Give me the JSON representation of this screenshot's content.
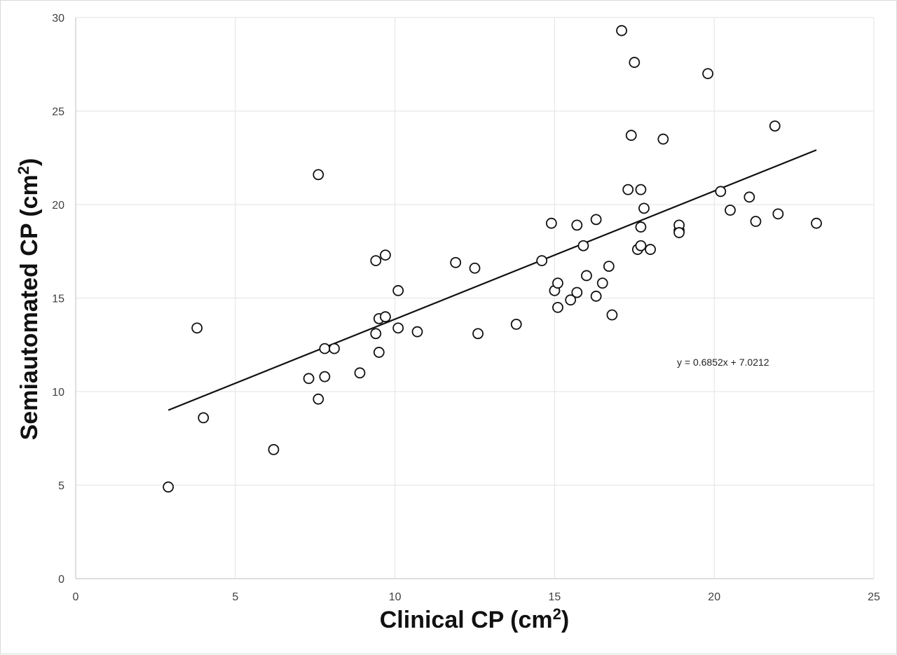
{
  "chart_data": {
    "type": "scatter",
    "title": "",
    "xlabel": "Clinical CP (cm",
    "xlabel_sup": "2",
    "xlabel_end": ")",
    "ylabel": "Semiautomated CP (cm",
    "ylabel_sup": "2",
    "ylabel_end": ")",
    "xlim": [
      0,
      25
    ],
    "ylim": [
      0,
      30
    ],
    "x_ticks": [
      0,
      5,
      10,
      15,
      20,
      25
    ],
    "y_ticks": [
      0,
      5,
      10,
      15,
      20,
      25,
      30
    ],
    "grid": true,
    "trendline": {
      "type": "linear",
      "slope": 0.6852,
      "intercept": 7.0212,
      "x_range": [
        2.9,
        23.2
      ],
      "equation_label": "y = 0.6852x + 7.0212"
    },
    "series": [
      {
        "marker": "open-circle",
        "points": [
          [
            2.9,
            4.9
          ],
          [
            3.8,
            13.4
          ],
          [
            4.0,
            8.6
          ],
          [
            6.2,
            6.9
          ],
          [
            7.6,
            21.6
          ],
          [
            7.3,
            10.7
          ],
          [
            7.6,
            9.6
          ],
          [
            7.8,
            12.3
          ],
          [
            7.8,
            10.8
          ],
          [
            8.1,
            12.3
          ],
          [
            8.9,
            11.0
          ],
          [
            9.4,
            17.0
          ],
          [
            9.4,
            13.1
          ],
          [
            9.5,
            13.9
          ],
          [
            9.5,
            12.1
          ],
          [
            9.7,
            17.3
          ],
          [
            9.7,
            14.0
          ],
          [
            10.1,
            15.4
          ],
          [
            10.1,
            13.4
          ],
          [
            10.7,
            13.2
          ],
          [
            11.9,
            16.9
          ],
          [
            12.5,
            16.6
          ],
          [
            12.6,
            13.1
          ],
          [
            13.8,
            13.6
          ],
          [
            14.6,
            17.0
          ],
          [
            14.9,
            19.0
          ],
          [
            15.0,
            15.4
          ],
          [
            15.1,
            15.8
          ],
          [
            15.1,
            14.5
          ],
          [
            15.5,
            14.9
          ],
          [
            15.7,
            18.9
          ],
          [
            15.7,
            15.3
          ],
          [
            15.9,
            17.8
          ],
          [
            16.0,
            16.2
          ],
          [
            16.3,
            19.2
          ],
          [
            16.3,
            15.1
          ],
          [
            16.5,
            15.8
          ],
          [
            16.7,
            16.7
          ],
          [
            16.8,
            14.1
          ],
          [
            17.1,
            29.3
          ],
          [
            17.3,
            20.8
          ],
          [
            17.4,
            23.7
          ],
          [
            17.5,
            27.6
          ],
          [
            17.6,
            17.6
          ],
          [
            17.7,
            20.8
          ],
          [
            17.7,
            18.8
          ],
          [
            17.7,
            17.8
          ],
          [
            17.8,
            19.8
          ],
          [
            18.0,
            17.6
          ],
          [
            18.4,
            23.5
          ],
          [
            18.9,
            18.6
          ],
          [
            18.9,
            18.9
          ],
          [
            18.9,
            18.5
          ],
          [
            19.8,
            27.0
          ],
          [
            20.2,
            20.7
          ],
          [
            20.5,
            19.7
          ],
          [
            21.1,
            20.4
          ],
          [
            21.3,
            19.1
          ],
          [
            21.9,
            24.2
          ],
          [
            22.0,
            19.5
          ],
          [
            23.2,
            19.0
          ]
        ]
      }
    ]
  }
}
